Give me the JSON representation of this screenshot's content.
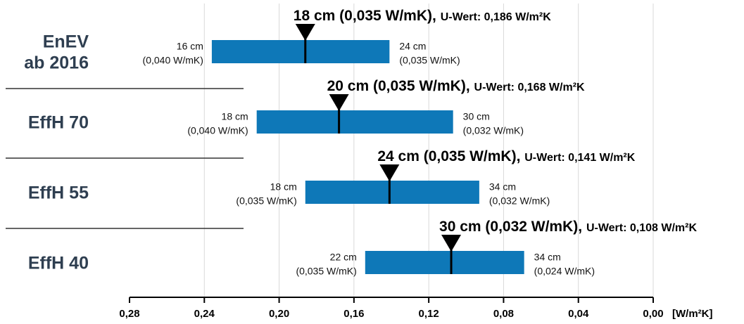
{
  "chart_data": {
    "type": "bar",
    "orientation": "horizontal-range",
    "x_axis": {
      "label": "[W/m²K]",
      "reversed": true,
      "xlim": [
        0.28,
        0.0
      ],
      "ticks": [
        0.28,
        0.24,
        0.2,
        0.16,
        0.12,
        0.08,
        0.04,
        0.0
      ],
      "tick_labels": [
        "0,28",
        "0,24",
        "0,20",
        "0,16",
        "0,12",
        "0,08",
        "0,04",
        "0,00"
      ],
      "grid": true
    },
    "colors": {
      "bar": "#0e78b8",
      "marker": "#000000",
      "category": "#2e3e50",
      "grid": "#d9d9d9"
    },
    "categories": [
      {
        "name_lines": [
          "EnEV",
          "ab 2016"
        ],
        "range": [
          0.236,
          0.141
        ],
        "marker_value": 0.186,
        "left_label": [
          "16 cm",
          "(0,040 W/mK)"
        ],
        "right_label": [
          "24 cm",
          "(0,035 W/mK)"
        ],
        "headline": "18 cm (0,035 W/mK),",
        "u_value": "U-Wert: 0,186 W/m²K"
      },
      {
        "name_lines": [
          "EffH 70"
        ],
        "range": [
          0.212,
          0.107
        ],
        "marker_value": 0.168,
        "left_label": [
          "18 cm",
          "(0,040 W/mK)"
        ],
        "right_label": [
          "30 cm",
          "(0,032 W/mK)"
        ],
        "headline": "20 cm (0,035 W/mK),",
        "u_value": "U-Wert: 0,168 W/m²K"
      },
      {
        "name_lines": [
          "EffH 55"
        ],
        "range": [
          0.186,
          0.093
        ],
        "marker_value": 0.141,
        "left_label": [
          "18 cm",
          "(0,035 W/mK)"
        ],
        "right_label": [
          "34 cm",
          "(0,032 W/mK)"
        ],
        "headline": "24 cm (0,035 W/mK),",
        "u_value": "U-Wert: 0,141 W/m²K"
      },
      {
        "name_lines": [
          "EffH 40"
        ],
        "range": [
          0.154,
          0.069
        ],
        "marker_value": 0.108,
        "left_label": [
          "22 cm",
          "(0,035 W/mK)"
        ],
        "right_label": [
          "34 cm",
          "(0,024 W/mK)"
        ],
        "headline": "30 cm (0,032 W/mK),",
        "u_value": "U-Wert: 0,108 W/m²K"
      }
    ]
  }
}
